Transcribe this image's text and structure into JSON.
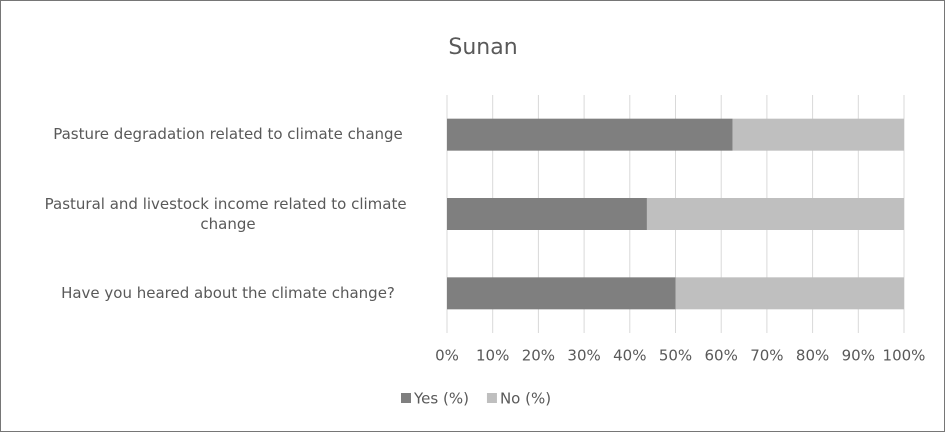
{
  "chart_data": {
    "type": "stacked-bar-horizontal",
    "title": "Sunan",
    "categories": [
      "Pasture degradation related to climate change",
      "Pastural and livestock income related to climate change",
      "Have you heared about the climate change?"
    ],
    "series": [
      {
        "name": "Yes (%)",
        "color": "#7f7f7f",
        "values": [
          62.5,
          43.75,
          50
        ]
      },
      {
        "name": "No (%)",
        "color": "#bfbfbf",
        "values": [
          37.5,
          56.25,
          50
        ]
      }
    ],
    "xlim": [
      0,
      100
    ],
    "xticks": [
      {
        "value": 0,
        "label": "0%"
      },
      {
        "value": 10,
        "label": "10%"
      },
      {
        "value": 20,
        "label": "20%"
      },
      {
        "value": 30,
        "label": "30%"
      },
      {
        "value": 40,
        "label": "40%"
      },
      {
        "value": 50,
        "label": "50%"
      },
      {
        "value": 60,
        "label": "60%"
      },
      {
        "value": 70,
        "label": "70%"
      },
      {
        "value": 80,
        "label": "80%"
      },
      {
        "value": 90,
        "label": "90%"
      },
      {
        "value": 100,
        "label": "100%"
      }
    ],
    "grid": true,
    "legend": "bottom"
  }
}
